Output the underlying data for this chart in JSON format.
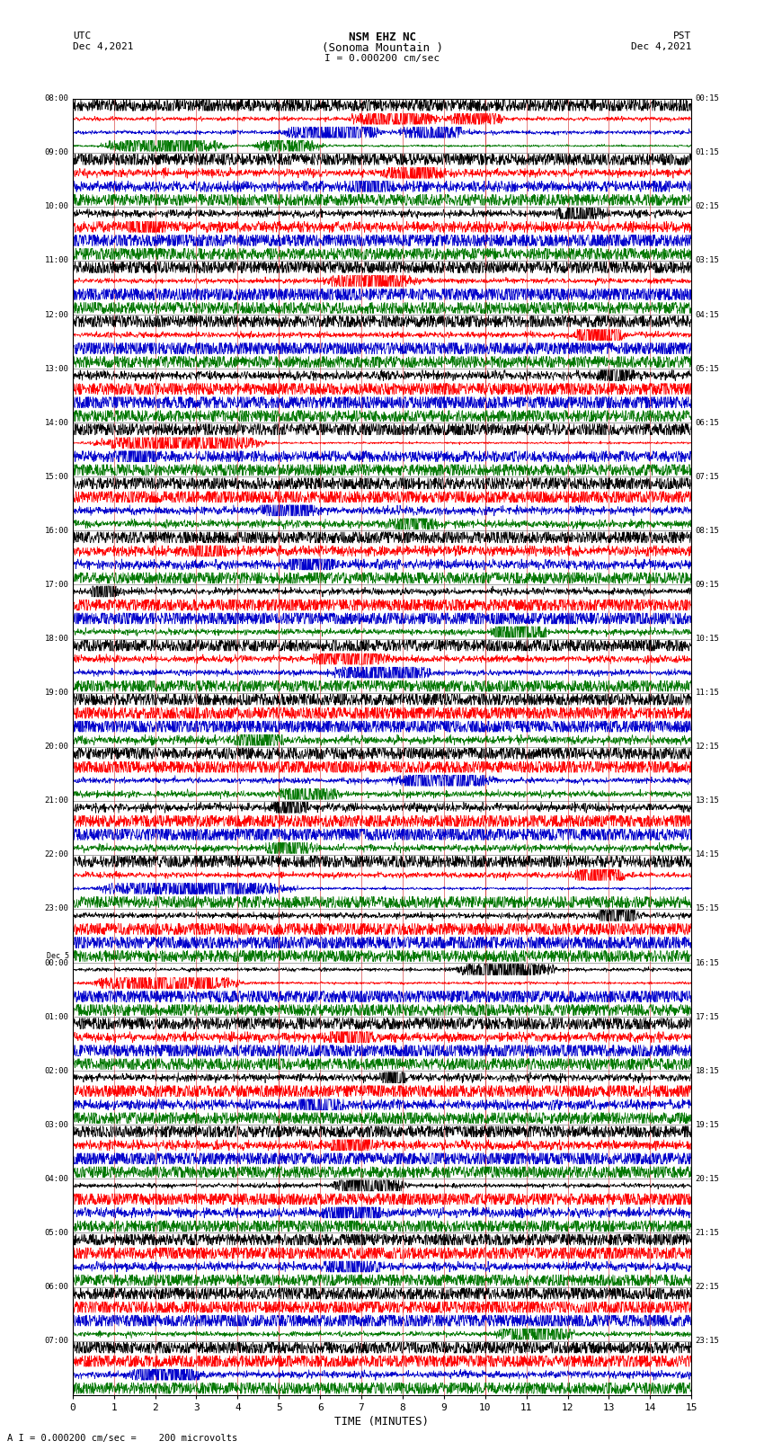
{
  "title_line1": "NSM EHZ NC",
  "title_line2": "(Sonoma Mountain )",
  "scale_label": "I = 0.000200 cm/sec",
  "left_date": "Dec 4,2021",
  "right_date": "Dec 4,2021",
  "left_tz": "UTC",
  "right_tz": "PST",
  "bottom_label": "TIME (MINUTES)",
  "bottom_note": "A I = 0.000200 cm/sec =    200 microvolts",
  "colors": [
    "#000000",
    "#ff0000",
    "#0000cc",
    "#007700"
  ],
  "bg_color": "#ffffff",
  "grid_color": "#cc0000",
  "xlim": [
    0,
    15
  ],
  "xticks": [
    0,
    1,
    2,
    3,
    4,
    5,
    6,
    7,
    8,
    9,
    10,
    11,
    12,
    13,
    14,
    15
  ],
  "fig_width": 8.5,
  "fig_height": 16.13,
  "dpi": 100,
  "num_hour_rows": 24,
  "traces_per_hour": 4,
  "left_utc_hours": [
    "08:00",
    "09:00",
    "10:00",
    "11:00",
    "12:00",
    "13:00",
    "14:00",
    "15:00",
    "16:00",
    "17:00",
    "18:00",
    "19:00",
    "20:00",
    "21:00",
    "22:00",
    "23:00",
    "00:00",
    "01:00",
    "02:00",
    "03:00",
    "04:00",
    "05:00",
    "06:00",
    "07:00"
  ],
  "dec5_row": 16,
  "right_pst_hours": [
    "00:15",
    "01:15",
    "02:15",
    "03:15",
    "04:15",
    "05:15",
    "06:15",
    "07:15",
    "08:15",
    "09:15",
    "10:15",
    "11:15",
    "12:15",
    "13:15",
    "14:15",
    "15:15",
    "16:15",
    "17:15",
    "18:15",
    "19:15",
    "20:15",
    "21:15",
    "22:15",
    "23:15"
  ]
}
